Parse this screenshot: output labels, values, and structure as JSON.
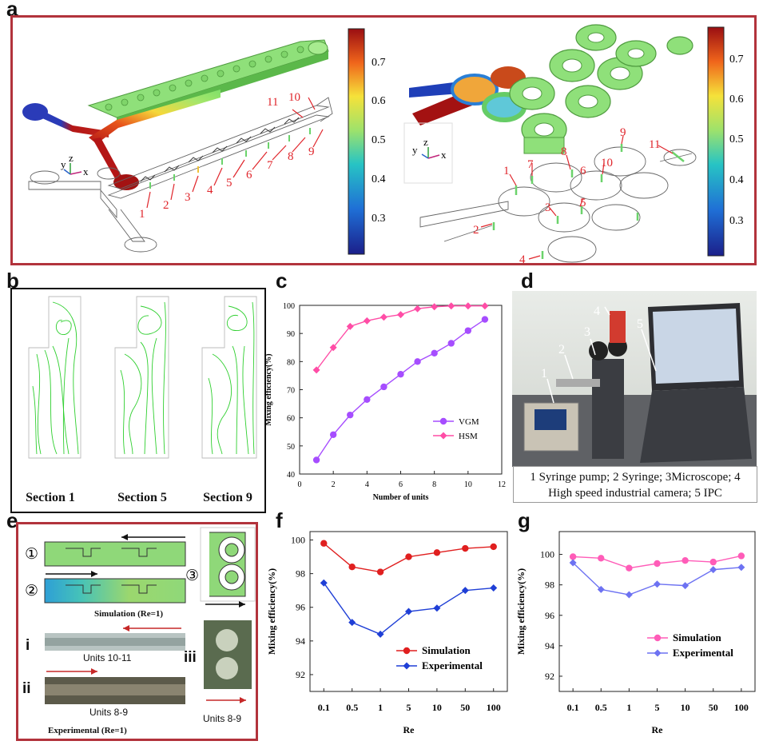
{
  "panels": {
    "a": {
      "label": "a",
      "colorbar_ticks": [
        "0.7",
        "0.6",
        "0.5",
        "0.4",
        "0.3"
      ],
      "axes_labels": [
        "y",
        "z",
        "x"
      ],
      "left_unit_numbers": [
        "1",
        "2",
        "3",
        "4",
        "5",
        "6",
        "7",
        "8",
        "9",
        "10",
        "11"
      ],
      "right_unit_numbers": [
        "1",
        "2",
        "3",
        "4",
        "5",
        "6",
        "7",
        "8",
        "9",
        "10",
        "11"
      ]
    },
    "b": {
      "label": "b",
      "sections": [
        "Section 1",
        "Section 5",
        "Section 9"
      ]
    },
    "c": {
      "label": "c"
    },
    "d": {
      "label": "d",
      "photo_numbers": [
        "1",
        "2",
        "3",
        "4",
        "5"
      ],
      "caption_line1": "1 Syringe pump;  2 Syringe;  3Microscope;  4",
      "caption_line2": "High speed industrial camera;  5 IPC"
    },
    "e": {
      "label": "e",
      "circled": [
        "①",
        "②",
        "③"
      ],
      "simulation_caption": "Simulation  (Re=1)",
      "roman": [
        "i",
        "ii",
        "iii"
      ],
      "units_i": "Units 10-11",
      "units_ii": "Units 8-9",
      "units_iii": "Units 8-9",
      "experimental_caption": "Experimental  (Re=1)"
    },
    "f": {
      "label": "f"
    },
    "g": {
      "label": "g"
    }
  },
  "chart_data": [
    {
      "id": "c",
      "type": "line",
      "xlabel": "Number of units",
      "ylabel": "Mixing efficiency(%)",
      "xlim": [
        0,
        12
      ],
      "ylim": [
        40,
        100
      ],
      "xticks": [
        0,
        2,
        4,
        6,
        8,
        10,
        12
      ],
      "yticks": [
        40,
        50,
        60,
        70,
        80,
        90,
        100
      ],
      "x": [
        1,
        2,
        3,
        4,
        5,
        6,
        7,
        8,
        9,
        10,
        11
      ],
      "series": [
        {
          "name": "VGM",
          "color": "#a64dff",
          "marker": "circle",
          "values": [
            45,
            54,
            61,
            66.5,
            71,
            75.5,
            80,
            83,
            86.5,
            91,
            95
          ]
        },
        {
          "name": "HSM",
          "color": "#ff4da6",
          "marker": "diamond",
          "values": [
            77,
            85,
            92.5,
            94.5,
            95.8,
            96.7,
            98.8,
            99.5,
            99.8,
            99.8,
            99.8
          ]
        }
      ],
      "legend": "bottom-right"
    },
    {
      "id": "f",
      "type": "line",
      "xlabel": "Re",
      "ylabel": "Mixing efficiency(%)",
      "categories": [
        "0.1",
        "0.5",
        "1",
        "5",
        "10",
        "50",
        "100"
      ],
      "ylim": [
        91,
        100.5
      ],
      "yticks": [
        92,
        94,
        96,
        98,
        100
      ],
      "series": [
        {
          "name": "Simulation",
          "color": "#e01f1f",
          "marker": "circle",
          "values": [
            99.8,
            98.4,
            98.1,
            99.0,
            99.25,
            99.5,
            99.6
          ]
        },
        {
          "name": "Experimental",
          "color": "#1f3fd6",
          "marker": "diamond",
          "values": [
            97.45,
            95.1,
            94.4,
            95.75,
            95.95,
            97.0,
            97.15
          ]
        }
      ],
      "legend": "bottom-right"
    },
    {
      "id": "g",
      "type": "line",
      "xlabel": "Re",
      "ylabel": "Mixing efficiency(%)",
      "categories": [
        "0.1",
        "0.5",
        "1",
        "5",
        "10",
        "50",
        "100"
      ],
      "ylim": [
        91,
        101.5
      ],
      "yticks": [
        92,
        94,
        96,
        98,
        100
      ],
      "series": [
        {
          "name": "Simulation",
          "color": "#ff5cb8",
          "marker": "circle",
          "values": [
            99.85,
            99.75,
            99.1,
            99.4,
            99.6,
            99.5,
            99.9
          ]
        },
        {
          "name": "Experimental",
          "color": "#6d72f2",
          "marker": "diamond",
          "values": [
            99.45,
            97.7,
            97.35,
            98.05,
            97.95,
            99.0,
            99.15
          ]
        }
      ],
      "legend": "bottom-right"
    }
  ]
}
